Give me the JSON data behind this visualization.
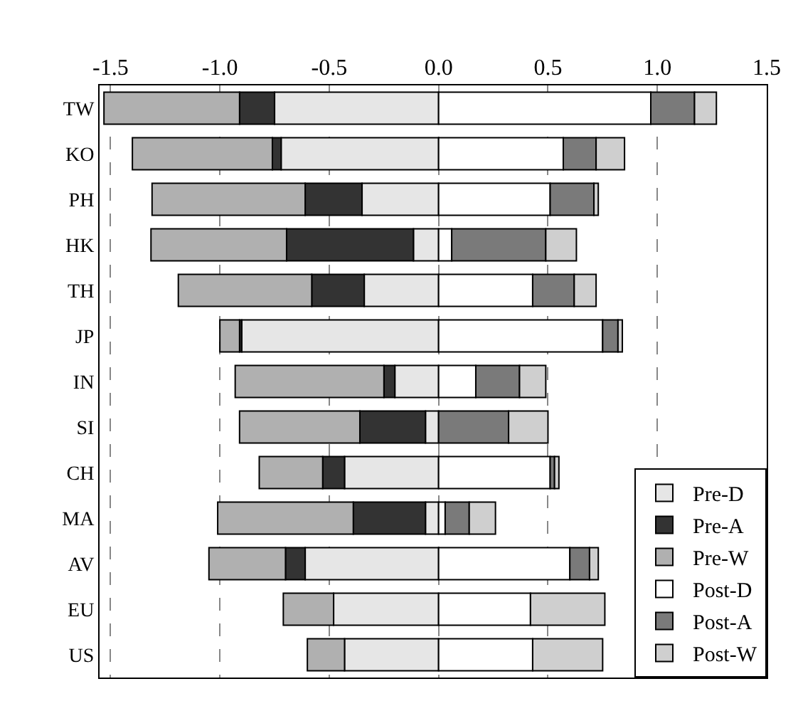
{
  "chart_data": {
    "type": "bar",
    "orientation": "horizontal",
    "stacked": true,
    "categories": [
      "TW",
      "KO",
      "PH",
      "HK",
      "TH",
      "JP",
      "IN",
      "SI",
      "CH",
      "MA",
      "AV",
      "EU",
      "US"
    ],
    "series": [
      {
        "name": "Pre-D",
        "color": "#e6e6e6",
        "values": [
          -0.75,
          -0.72,
          -0.35,
          -0.115,
          -0.34,
          -0.9,
          -0.2,
          -0.06,
          -0.43,
          -0.06,
          -0.61,
          -0.48,
          -0.43
        ]
      },
      {
        "name": "Pre-A",
        "color": "#333333",
        "values": [
          -0.16,
          -0.04,
          -0.26,
          -0.58,
          -0.24,
          -0.01,
          -0.05,
          -0.3,
          -0.1,
          -0.33,
          -0.09,
          null,
          null
        ]
      },
      {
        "name": "Pre-W",
        "color": "#b0b0b0",
        "values": [
          -0.62,
          -0.64,
          -0.7,
          -0.62,
          -0.61,
          -0.09,
          -0.68,
          -0.55,
          -0.29,
          -0.62,
          -0.35,
          -0.23,
          -0.17
        ]
      },
      {
        "name": "Post-D",
        "color": "#ffffff",
        "values": [
          0.97,
          0.57,
          0.51,
          0.06,
          0.43,
          0.75,
          0.17,
          null,
          0.51,
          0.03,
          0.6,
          0.42,
          0.43
        ]
      },
      {
        "name": "Post-A",
        "color": "#7a7a7a",
        "values": [
          0.2,
          0.15,
          0.2,
          0.43,
          0.19,
          0.07,
          0.2,
          0.32,
          0.02,
          0.11,
          0.09,
          null,
          null
        ]
      },
      {
        "name": "Post-W",
        "color": "#cfcfcf",
        "values": [
          0.1,
          0.13,
          0.02,
          0.14,
          0.1,
          0.02,
          0.12,
          0.18,
          0.02,
          0.12,
          0.04,
          0.34,
          0.32
        ]
      }
    ],
    "xlim": [
      -1.55,
      1.5
    ],
    "xticks": [
      -1.5,
      {
        "value": -1,
        "label": "-1.0"
      },
      -0.5,
      {
        "value": 0,
        "label": "0.0"
      },
      0.5,
      {
        "value": 1,
        "label": "1.0"
      },
      1.5
    ],
    "grid": "x",
    "legend": "bottom right"
  }
}
